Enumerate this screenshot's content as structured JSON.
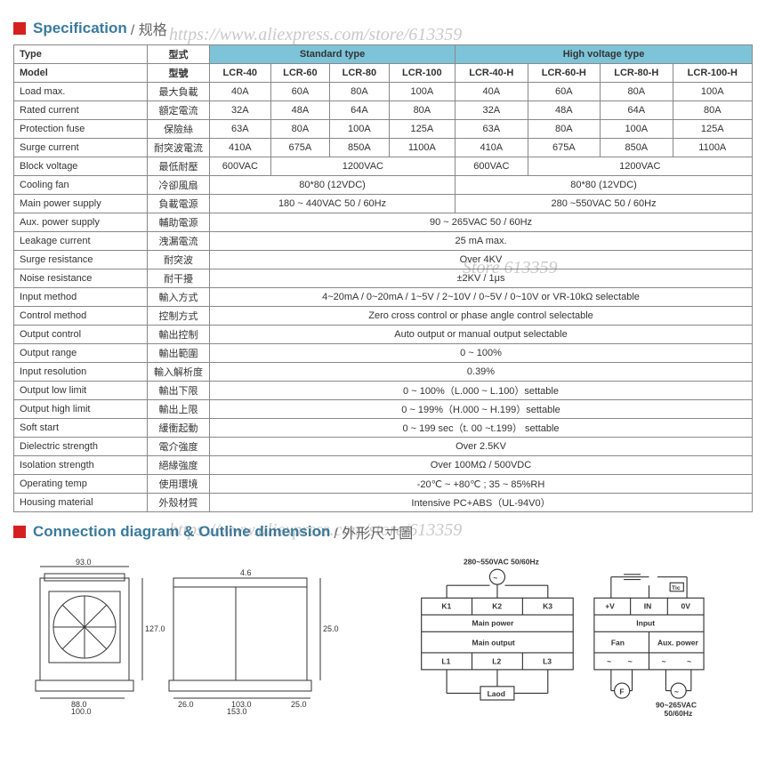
{
  "sections": {
    "spec": {
      "title_en": "Specification",
      "title_zh": "/ 规格"
    },
    "diagram": {
      "title_en": "Connection diagram & Outline dimension",
      "title_zh": "/ 外形尺寸圖"
    }
  },
  "watermark": {
    "url": "https://www.aliexpress.com/store/613359",
    "store": "Store 613359"
  },
  "table": {
    "type_label": "Type",
    "type_zh": "型式",
    "std_type": "Standard type",
    "hv_type": "High voltage type",
    "model_label": "Model",
    "model_zh": "型號",
    "models": [
      "LCR-40",
      "LCR-60",
      "LCR-80",
      "LCR-100",
      "LCR-40-H",
      "LCR-60-H",
      "LCR-80-H",
      "LCR-100-H"
    ],
    "rows": [
      {
        "en": "Load max.",
        "zh": "最大負載",
        "vals": [
          "40A",
          "60A",
          "80A",
          "100A",
          "40A",
          "60A",
          "80A",
          "100A"
        ]
      },
      {
        "en": "Rated current",
        "zh": "額定電流",
        "vals": [
          "32A",
          "48A",
          "64A",
          "80A",
          "32A",
          "48A",
          "64A",
          "80A"
        ]
      },
      {
        "en": "Protection fuse",
        "zh": "保險絲",
        "vals": [
          "63A",
          "80A",
          "100A",
          "125A",
          "63A",
          "80A",
          "100A",
          "125A"
        ]
      },
      {
        "en": "Surge current",
        "zh": "耐突波電流",
        "vals": [
          "410A",
          "675A",
          "850A",
          "1100A",
          "410A",
          "675A",
          "850A",
          "1100A"
        ]
      }
    ],
    "block_voltage": {
      "en": "Block voltage",
      "zh": "最低耐壓",
      "v1": "600VAC",
      "v2": "1200VAC",
      "v3": "600VAC",
      "v4": "1200VAC"
    },
    "cooling_fan": {
      "en": "Cooling fan",
      "zh": "冷卻風扇",
      "v1": "80*80 (12VDC)",
      "v2": "80*80 (12VDC)"
    },
    "main_power": {
      "en": "Main power supply",
      "zh": "負載電源",
      "v1": "180 ~ 440VAC 50 / 60Hz",
      "v2": "280 ~550VAC 50 / 60Hz"
    },
    "full_rows": [
      {
        "en": "Aux. power supply",
        "zh": "輔助電源",
        "val": "90 ~ 265VAC  50 / 60Hz"
      },
      {
        "en": "Leakage current",
        "zh": "洩漏電流",
        "val": "25 mA max."
      },
      {
        "en": "Surge resistance",
        "zh": "耐突波",
        "val": "Over 4KV"
      },
      {
        "en": "Noise resistance",
        "zh": "耐干擾",
        "val": "±2KV / 1μs"
      },
      {
        "en": "Input method",
        "zh": "輸入方式",
        "val": "4~20mA / 0~20mA / 1~5V / 2~10V / 0~5V / 0~10V or VR-10kΩ selectable"
      },
      {
        "en": "Control method",
        "zh": "控制方式",
        "val": "Zero cross control or phase angle control selectable"
      },
      {
        "en": "Output control",
        "zh": "輸出控制",
        "val": "Auto output or manual output selectable"
      },
      {
        "en": "Output range",
        "zh": "輸出範圍",
        "val": "0 ~ 100%"
      },
      {
        "en": "Input resolution",
        "zh": "輸入解析度",
        "val": "0.39%"
      },
      {
        "en": "Output low limit",
        "zh": "輸出下限",
        "val": "0 ~ 100%（L.000 ~ L.100）settable"
      },
      {
        "en": "Output high limit",
        "zh": "輸出上限",
        "val": "0 ~ 199%（H.000 ~ H.199）settable"
      },
      {
        "en": "Soft start",
        "zh": "緩衝起動",
        "val": "0 ~ 199 sec（t. 00 ~t.199） settable"
      },
      {
        "en": "Dielectric strength",
        "zh": "電介強度",
        "val": "Over 2.5KV"
      },
      {
        "en": "Isolation strength",
        "zh": "絕緣強度",
        "val": "Over 100MΩ / 500VDC"
      },
      {
        "en": "Operating temp",
        "zh": "使用環境",
        "val": "-20℃ ~ +80℃ ; 35 ~ 85%RH"
      },
      {
        "en": "Housing material",
        "zh": "外殼材質",
        "val": "Intensive PC+ABS（UL-94V0）"
      }
    ]
  },
  "outline": {
    "dims": {
      "w": "93.0",
      "h": "127.0",
      "base_w": "88.0",
      "base_full": "100.0",
      "d1": "26.0",
      "d2": "103.0",
      "d3": "25.0",
      "depth": "153.0",
      "notch": "4.6",
      "side": "25.0"
    }
  },
  "connection": {
    "power_label": "280~550VAC 50/60Hz",
    "k": [
      "K1",
      "K2",
      "K3"
    ],
    "main_power": "Main power",
    "main_output": "Main output",
    "l": [
      "L1",
      "L2",
      "L3"
    ],
    "load": "Laod",
    "input_terms": [
      "+V",
      "IN",
      "0V"
    ],
    "input": "Input",
    "fan": "Fan",
    "aux": "Aux. power",
    "aux_v": "90~265VAC\n50/60Hz",
    "f": "F",
    "tic": "Tic"
  }
}
